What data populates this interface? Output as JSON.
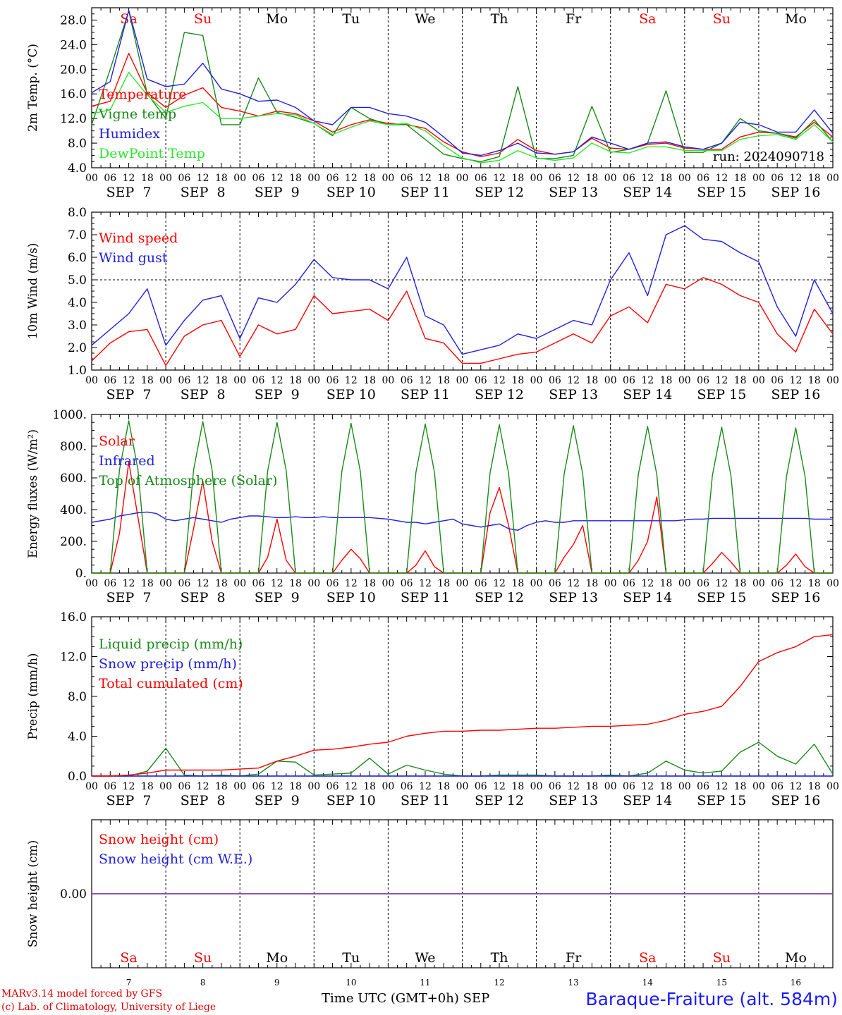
{
  "colors": {
    "red": "#ff0000",
    "green": "#1a8a1a",
    "blue": "#2020e0",
    "lightgreen": "#2ee62e",
    "purple": "#7a3fa0"
  },
  "hour_ticks": [
    "00",
    "06",
    "12",
    "18"
  ],
  "day_labels": [
    "SEP  7",
    "SEP  8",
    "SEP  9",
    "SEP 10",
    "SEP 11",
    "SEP 12",
    "SEP 13",
    "SEP 14",
    "SEP 15",
    "SEP 16"
  ],
  "weekdays": [
    {
      "label": "Sa",
      "color": "#ff0000"
    },
    {
      "label": "Su",
      "color": "#ff0000"
    },
    {
      "label": "Mo",
      "color": "#000000"
    },
    {
      "label": "Tu",
      "color": "#000000"
    },
    {
      "label": "We",
      "color": "#000000"
    },
    {
      "label": "Th",
      "color": "#000000"
    },
    {
      "label": "Fr",
      "color": "#000000"
    },
    {
      "label": "Sa",
      "color": "#ff0000"
    },
    {
      "label": "Su",
      "color": "#ff0000"
    },
    {
      "label": "Mo",
      "color": "#000000"
    }
  ],
  "bottom_day_numbers": [
    "7",
    "8",
    "9",
    "10",
    "11",
    "12",
    "13",
    "14",
    "15",
    "16"
  ],
  "footer": {
    "credit_line1": "MARv3.14 model forced by GFS",
    "credit_line2": "(c) Lab. of Climatology, University of Liege",
    "time_label": "Time UTC (GMT+0h)",
    "month_label": "SEP",
    "station": "Baraque-Fraiture (alt. 584m)"
  },
  "chart_data": [
    {
      "type": "line",
      "name": "temperature",
      "ylabel": "2m Temp. (°C)",
      "ylim": [
        4.0,
        30.0
      ],
      "yticks": [
        "4.0",
        "8.0",
        "12.0",
        "16.0",
        "20.0",
        "24.0",
        "28.0"
      ],
      "run_label": "run: 2024090718",
      "x": [
        0,
        6,
        12,
        18,
        24,
        30,
        36,
        42,
        48,
        54,
        60,
        66,
        72,
        78,
        84,
        90,
        96,
        102,
        108,
        114,
        120,
        126,
        132,
        138,
        144,
        150,
        156,
        162,
        168,
        174,
        180,
        186,
        192,
        198,
        204,
        210,
        216,
        222,
        228,
        234,
        240
      ],
      "series": [
        {
          "name": "Temperature",
          "color": "red",
          "values": [
            14,
            14.8,
            22.6,
            16.2,
            13.8,
            15.8,
            17,
            13.8,
            13.2,
            12.4,
            13.2,
            12.8,
            11.6,
            9.8,
            11,
            11.8,
            11.2,
            11,
            10.4,
            8.2,
            6.6,
            5.8,
            6.4,
            8.6,
            6.8,
            6.2,
            6.6,
            8.8,
            7.2,
            7,
            7.8,
            8,
            7.2,
            7,
            7,
            9,
            9.8,
            9.6,
            9,
            11.4,
            9
          ]
        },
        {
          "name": "Vigne temp",
          "color": "green",
          "values": [
            11,
            20,
            29.5,
            16,
            12,
            26,
            25.5,
            11,
            11,
            18.6,
            13,
            12.2,
            11.2,
            9.2,
            13.8,
            12,
            11,
            11,
            8.6,
            6.2,
            5.5,
            5,
            5.8,
            17.2,
            5.5,
            5.5,
            6,
            14,
            6.5,
            7,
            8,
            16.5,
            6.5,
            6.5,
            8,
            12,
            10,
            9.6,
            8.8,
            11.8,
            8.2
          ]
        },
        {
          "name": "Humidex",
          "color": "blue",
          "values": [
            16.2,
            18,
            29.6,
            18.4,
            17.2,
            17.6,
            21,
            16.8,
            16,
            14.8,
            15,
            13.8,
            11.6,
            11,
            13.8,
            13.8,
            12.8,
            12.4,
            11.4,
            9,
            6.4,
            6,
            6.8,
            8,
            6.4,
            6.2,
            6.6,
            9,
            8,
            7,
            8,
            8.2,
            7.4,
            7,
            8,
            11.4,
            11,
            9.8,
            9.8,
            13.4,
            9.6
          ]
        },
        {
          "name": "DewPoint Temp",
          "color": "lightgreen",
          "values": [
            12.8,
            13.4,
            19.5,
            15.8,
            13,
            14,
            14.6,
            12,
            12,
            12.4,
            12.8,
            12.6,
            11.2,
            9.4,
            10.6,
            11.6,
            11,
            11.2,
            10,
            7.6,
            5.6,
            4.8,
            5.2,
            6.8,
            5.6,
            5.2,
            5.6,
            8,
            6.6,
            6.4,
            7.4,
            7.4,
            6.8,
            6.8,
            6.8,
            8.6,
            9.2,
            9.4,
            8.6,
            11,
            8.2
          ]
        }
      ]
    },
    {
      "type": "line",
      "name": "wind",
      "ylabel": "10m Wind (m/s)",
      "ylim": [
        1.0,
        8.0
      ],
      "yticks": [
        "1.0",
        "2.0",
        "3.0",
        "4.0",
        "5.0",
        "6.0",
        "7.0",
        "8.0"
      ],
      "reference_line": 5.0,
      "x": [
        0,
        6,
        12,
        18,
        24,
        30,
        36,
        42,
        48,
        54,
        60,
        66,
        72,
        78,
        84,
        90,
        96,
        102,
        108,
        114,
        120,
        126,
        132,
        138,
        144,
        150,
        156,
        162,
        168,
        174,
        180,
        186,
        192,
        198,
        204,
        210,
        216,
        222,
        228,
        234,
        240
      ],
      "series": [
        {
          "name": "Wind speed",
          "color": "red",
          "values": [
            1.4,
            2.2,
            2.7,
            2.8,
            1.2,
            2.5,
            3.0,
            3.2,
            1.6,
            3.0,
            2.6,
            2.8,
            4.3,
            3.5,
            3.6,
            3.7,
            3.2,
            4.5,
            2.4,
            2.2,
            1.3,
            1.3,
            1.5,
            1.7,
            1.8,
            2.2,
            2.6,
            2.2,
            3.4,
            3.8,
            3.1,
            4.8,
            4.6,
            5.1,
            4.8,
            4.3,
            4.0,
            2.6,
            1.8,
            3.7,
            2.6
          ]
        },
        {
          "name": "Wind gust",
          "color": "blue",
          "values": [
            2.1,
            2.8,
            3.5,
            4.6,
            2.1,
            3.2,
            4.1,
            4.3,
            2.4,
            4.2,
            4.0,
            4.8,
            5.9,
            5.1,
            5.0,
            5.0,
            4.6,
            6.0,
            3.4,
            3.0,
            1.7,
            1.9,
            2.1,
            2.6,
            2.4,
            2.8,
            3.2,
            3.0,
            5.0,
            6.2,
            4.3,
            7.0,
            7.4,
            6.8,
            6.7,
            6.2,
            5.8,
            3.8,
            2.5,
            5.0,
            3.5
          ]
        }
      ]
    },
    {
      "type": "line",
      "name": "energy",
      "ylabel": "Energy fluxes (W/m²)",
      "ylim": [
        0,
        1000
      ],
      "yticks": [
        "0.",
        "200.",
        "400.",
        "600.",
        "800.",
        "1000."
      ],
      "x": [
        0,
        3,
        6,
        9,
        12,
        15,
        18,
        21,
        24,
        27,
        30,
        33,
        36,
        39,
        42,
        45,
        48,
        51,
        54,
        57,
        60,
        63,
        66,
        69,
        72,
        75,
        78,
        81,
        84,
        87,
        90,
        93,
        96,
        99,
        102,
        105,
        108,
        111,
        114,
        117,
        120,
        123,
        126,
        129,
        132,
        135,
        138,
        141,
        144,
        147,
        150,
        153,
        156,
        159,
        162,
        165,
        168,
        171,
        174,
        177,
        180,
        183,
        186,
        189,
        192,
        195,
        198,
        201,
        204,
        207,
        210,
        213,
        216,
        219,
        222,
        225,
        228,
        231,
        234,
        237,
        240
      ],
      "series": [
        {
          "name": "Solar",
          "color": "red",
          "values": [
            0,
            0,
            0,
            250,
            700,
            350,
            0,
            0,
            0,
            0,
            0,
            280,
            580,
            200,
            0,
            0,
            0,
            0,
            0,
            100,
            340,
            80,
            0,
            0,
            0,
            0,
            0,
            80,
            150,
            90,
            0,
            0,
            0,
            0,
            0,
            50,
            140,
            40,
            0,
            0,
            0,
            0,
            0,
            380,
            540,
            300,
            0,
            0,
            0,
            0,
            0,
            100,
            180,
            300,
            0,
            0,
            0,
            0,
            0,
            80,
            200,
            480,
            0,
            0,
            0,
            0,
            0,
            60,
            130,
            70,
            0,
            0,
            0,
            0,
            0,
            50,
            120,
            40,
            0,
            0,
            0
          ]
        },
        {
          "name": "Infrared",
          "color": "blue",
          "values": [
            320,
            330,
            340,
            360,
            370,
            380,
            385,
            375,
            340,
            330,
            340,
            350,
            340,
            330,
            320,
            340,
            350,
            360,
            360,
            355,
            350,
            350,
            355,
            350,
            350,
            355,
            350,
            350,
            350,
            350,
            350,
            345,
            340,
            330,
            320,
            320,
            310,
            320,
            330,
            340,
            310,
            300,
            290,
            300,
            310,
            280,
            270,
            300,
            320,
            330,
            320,
            320,
            330,
            330,
            330,
            330,
            330,
            330,
            330,
            330,
            330,
            330,
            330,
            330,
            335,
            340,
            340,
            345,
            345,
            345,
            345,
            345,
            345,
            345,
            345,
            345,
            345,
            345,
            340,
            340,
            340
          ]
        },
        {
          "name": "Top of Atmosphere (Solar)",
          "color": "green",
          "values": [
            0,
            0,
            0,
            650,
            960,
            650,
            0,
            0,
            0,
            0,
            0,
            650,
            955,
            650,
            0,
            0,
            0,
            0,
            0,
            645,
            950,
            645,
            0,
            0,
            0,
            0,
            0,
            640,
            945,
            640,
            0,
            0,
            0,
            0,
            0,
            635,
            940,
            635,
            0,
            0,
            0,
            0,
            0,
            630,
            935,
            630,
            0,
            0,
            0,
            0,
            0,
            625,
            930,
            625,
            0,
            0,
            0,
            0,
            0,
            620,
            925,
            620,
            0,
            0,
            0,
            0,
            0,
            615,
            920,
            615,
            0,
            0,
            0,
            0,
            0,
            610,
            915,
            610,
            0,
            0,
            0
          ]
        }
      ]
    },
    {
      "type": "line",
      "name": "precip",
      "ylabel": "Precip (mm/h)",
      "ylim": [
        0,
        16.0
      ],
      "yticks": [
        "0.0",
        "4.0",
        "8.0",
        "12.0",
        "16.0"
      ],
      "x": [
        0,
        6,
        12,
        18,
        24,
        30,
        36,
        42,
        48,
        54,
        60,
        66,
        72,
        78,
        84,
        90,
        96,
        102,
        108,
        114,
        120,
        126,
        132,
        138,
        144,
        150,
        156,
        162,
        168,
        174,
        180,
        186,
        192,
        198,
        204,
        210,
        216,
        222,
        228,
        234,
        240
      ],
      "series": [
        {
          "name": "Liquid precip (mm/h)",
          "color": "green",
          "values": [
            0,
            0,
            0,
            0.5,
            2.8,
            0.1,
            0,
            0.1,
            0,
            0.2,
            1.5,
            1.4,
            0.1,
            0.2,
            0.3,
            1.8,
            0.2,
            1.1,
            0.6,
            0.2,
            0,
            0,
            0.1,
            0.1,
            0.1,
            0,
            0,
            0,
            0.1,
            0,
            0.3,
            1.5,
            0.6,
            0.3,
            0.5,
            2.4,
            3.4,
            2.0,
            1.2,
            3.2,
            0.2
          ]
        },
        {
          "name": "Snow precip (mm/h)",
          "color": "blue",
          "values": [
            0,
            0,
            0,
            0,
            0,
            0,
            0,
            0,
            0,
            0,
            0,
            0,
            0,
            0,
            0,
            0,
            0,
            0,
            0,
            0,
            0,
            0,
            0,
            0,
            0,
            0,
            0,
            0,
            0,
            0,
            0,
            0,
            0,
            0,
            0,
            0,
            0,
            0,
            0,
            0,
            0
          ]
        },
        {
          "name": "Total cumulated (cm)",
          "color": "red",
          "values": [
            0,
            0,
            0.1,
            0.3,
            0.6,
            0.6,
            0.6,
            0.6,
            0.7,
            0.8,
            1.5,
            2.0,
            2.6,
            2.7,
            2.9,
            3.2,
            3.4,
            4.0,
            4.3,
            4.5,
            4.5,
            4.6,
            4.6,
            4.7,
            4.8,
            4.8,
            4.9,
            5.0,
            5.0,
            5.1,
            5.2,
            5.6,
            6.2,
            6.5,
            7.0,
            9.0,
            11.5,
            12.4,
            13.0,
            14.0,
            14.2
          ]
        }
      ]
    },
    {
      "type": "line",
      "name": "snow",
      "ylabel": "Snow height (cm)",
      "ylim": [
        -1,
        1
      ],
      "yticks": [
        "0.00"
      ],
      "x": [
        0,
        240
      ],
      "series": [
        {
          "name": "Snow height (cm)",
          "color": "red",
          "values": [
            0,
            0
          ]
        },
        {
          "name": "Snow height (cm W.E.)",
          "color": "blue",
          "values": [
            0,
            0
          ]
        }
      ]
    }
  ]
}
